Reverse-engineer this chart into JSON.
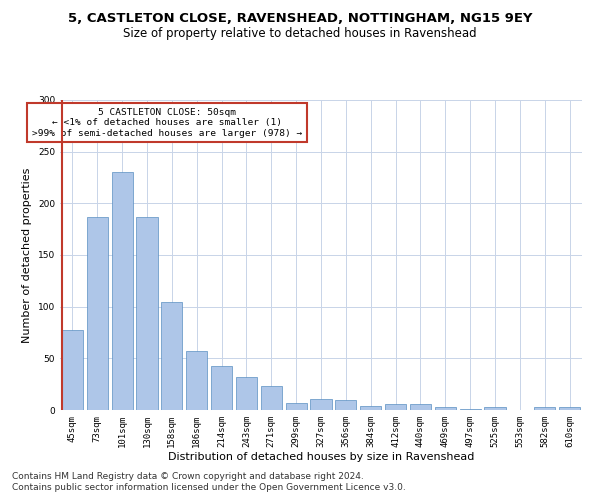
{
  "title1": "5, CASTLETON CLOSE, RAVENSHEAD, NOTTINGHAM, NG15 9EY",
  "title2": "Size of property relative to detached houses in Ravenshead",
  "xlabel": "Distribution of detached houses by size in Ravenshead",
  "ylabel": "Number of detached properties",
  "categories": [
    "45sqm",
    "73sqm",
    "101sqm",
    "130sqm",
    "158sqm",
    "186sqm",
    "214sqm",
    "243sqm",
    "271sqm",
    "299sqm",
    "327sqm",
    "356sqm",
    "384sqm",
    "412sqm",
    "440sqm",
    "469sqm",
    "497sqm",
    "525sqm",
    "553sqm",
    "582sqm",
    "610sqm"
  ],
  "values": [
    77,
    187,
    230,
    187,
    105,
    57,
    43,
    32,
    23,
    7,
    11,
    10,
    4,
    6,
    6,
    3,
    1,
    3,
    0,
    3,
    3
  ],
  "bar_color": "#aec6e8",
  "bar_edge_color": "#5a8fc2",
  "highlight_line_color": "#c0392b",
  "ylim": [
    0,
    300
  ],
  "yticks": [
    0,
    50,
    100,
    150,
    200,
    250,
    300
  ],
  "annotation_text": "5 CASTLETON CLOSE: 50sqm\n← <1% of detached houses are smaller (1)\n>99% of semi-detached houses are larger (978) →",
  "annotation_box_color": "#ffffff",
  "annotation_box_edge": "#c0392b",
  "footer1": "Contains HM Land Registry data © Crown copyright and database right 2024.",
  "footer2": "Contains public sector information licensed under the Open Government Licence v3.0.",
  "bg_color": "#ffffff",
  "grid_color": "#c8d4e8",
  "title1_fontsize": 9.5,
  "title2_fontsize": 8.5,
  "axis_label_fontsize": 8,
  "tick_fontsize": 6.5,
  "footer_fontsize": 6.5
}
